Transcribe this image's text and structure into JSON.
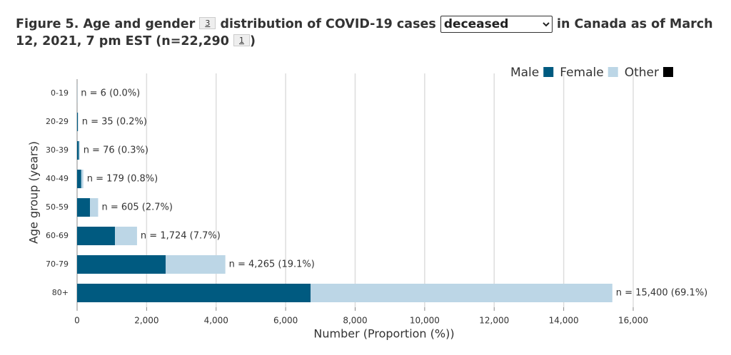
{
  "header": {
    "title_part1": "Figure 5. Age and gender",
    "ref1": "3",
    "title_part2": "distribution of COVID-19 cases",
    "select_value": "deceased",
    "title_part3": "in Canada as of March 12, 2021, 7 pm EST (n=22,290",
    "ref2": "1",
    "title_part4": ")"
  },
  "chart_data": {
    "type": "stacked-hbar",
    "x_label": "Number (Proportion (%))",
    "y_label": "Age group (years)",
    "categories": [
      "0-19",
      "20-29",
      "30-39",
      "40-49",
      "50-59",
      "60-69",
      "70-79",
      "80+"
    ],
    "series": [
      {
        "name": "Male",
        "color": "#005a80",
        "values": [
          3,
          22,
          50,
          120,
          370,
          1090,
          2550,
          6720
        ]
      },
      {
        "name": "Female",
        "color": "#bcd6e6",
        "values": [
          3,
          13,
          26,
          59,
          235,
          634,
          1715,
          8680
        ]
      },
      {
        "name": "Other",
        "color": "#000000",
        "values": [
          0,
          0,
          0,
          0,
          0,
          0,
          0,
          0
        ]
      }
    ],
    "bar_labels": [
      "n = 6 (0.0%)",
      "n = 35 (0.2%)",
      "n = 76 (0.3%)",
      "n = 179 (0.8%)",
      "n = 605 (2.7%)",
      "n = 1,724 (7.7%)",
      "n = 4,265 (19.1%)",
      "n = 15,400 (69.1%)"
    ],
    "xlim": [
      0,
      16000
    ],
    "xticks": [
      0,
      {
        "value": 2000,
        "label": "2,000"
      },
      {
        "value": 4000,
        "label": "4,000"
      },
      {
        "value": 6000,
        "label": "6,000"
      },
      {
        "value": 8000,
        "label": "8,000"
      },
      {
        "value": 10000,
        "label": "10,000"
      },
      {
        "value": 12000,
        "label": "12,000"
      },
      {
        "value": 14000,
        "label": "14,000"
      },
      {
        "value": 16000,
        "label": "16,000"
      }
    ],
    "grid": true,
    "legend": "top-right"
  }
}
